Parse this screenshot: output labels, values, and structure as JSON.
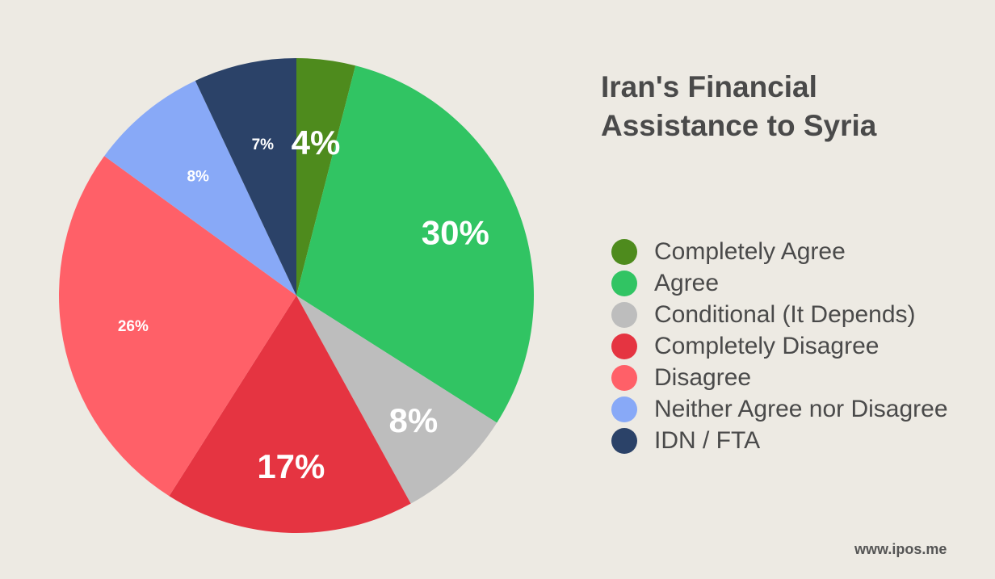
{
  "chart_data": {
    "type": "pie",
    "title_lines": [
      "Iran's Financial",
      "Assistance to Syria"
    ],
    "slices": [
      {
        "name": "Completely Agree",
        "value": 4,
        "label": "4%",
        "color": "#4e8b1d",
        "emphasis": true
      },
      {
        "name": "Agree",
        "value": 30,
        "label": "30%",
        "color": "#31c463",
        "emphasis": true
      },
      {
        "name": "Conditional (It Depends)",
        "value": 8,
        "label": "8%",
        "color": "#bdbdbd",
        "emphasis": true
      },
      {
        "name": "Completely Disagree",
        "value": 17,
        "label": "17%",
        "color": "#e53441",
        "emphasis": true
      },
      {
        "name": "Disagree",
        "value": 26,
        "label": "26%",
        "color": "#ff6068",
        "emphasis": false
      },
      {
        "name": "Neither Agree nor Disagree",
        "value": 8,
        "label": "8%",
        "color": "#88a9f7",
        "emphasis": false
      },
      {
        "name": "IDN / FTA",
        "value": 7,
        "label": "7%",
        "color": "#2b4268",
        "emphasis": false
      }
    ],
    "legend_placement": "right"
  },
  "footer": {
    "site": "www.ipos.me"
  }
}
